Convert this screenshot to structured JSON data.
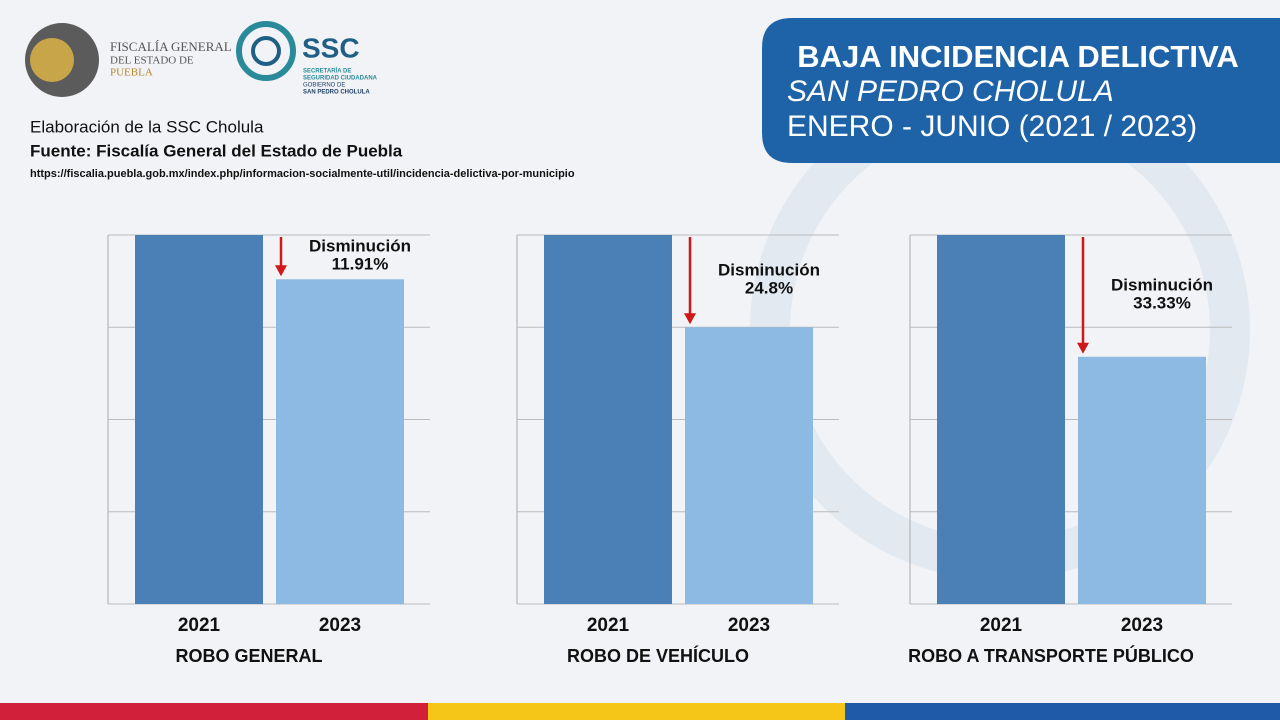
{
  "header": {
    "logo1": [
      "FISCALÍA GENERAL",
      "DEL ESTADO DE",
      "PUEBLA"
    ],
    "logo2": {
      "title": "SSC",
      "lines": [
        "SECRETARÍA DE",
        "SEGURIDAD CIUDADANA",
        "GOBIERNO DE",
        "SAN PEDRO CHOLULA"
      ]
    },
    "title": [
      "BAJA INCIDENCIA DELICTIVA",
      "SAN PEDRO CHOLULA",
      "ENERO - JUNIO (2021 / 2023)"
    ]
  },
  "source": [
    "Elaboración de la SSC Cholula",
    "Fuente: Fiscalía General del Estado de Puebla",
    "https://fiscalia.puebla.gob.mx/index.php/informacion-socialmente-util/incidencia-delictiva-por-municipio"
  ],
  "chart_data": [
    {
      "type": "bar",
      "xlabel": "ROBO GENERAL",
      "categories": [
        "2021",
        "2023"
      ],
      "values": [
        100,
        88
      ],
      "colors": [
        "#4a80b6",
        "#8dbae2"
      ],
      "ylim": [
        0,
        100
      ],
      "yticks": [
        0,
        25,
        50,
        75,
        100
      ],
      "grid": true,
      "annotation": [
        "Disminución",
        "11.91%"
      ]
    },
    {
      "type": "bar",
      "xlabel": "ROBO DE VEHÍCULO",
      "categories": [
        "2021",
        "2023"
      ],
      "values": [
        100,
        75
      ],
      "colors": [
        "#4a80b6",
        "#8dbae2"
      ],
      "ylim": [
        0,
        100
      ],
      "yticks": [
        0,
        25,
        50,
        75,
        100
      ],
      "grid": true,
      "annotation": [
        "Disminución",
        "24.8%"
      ]
    },
    {
      "type": "bar",
      "xlabel": "ROBO A TRANSPORTE PÚBLICO",
      "categories": [
        "2021",
        "2023"
      ],
      "values": [
        100,
        67
      ],
      "colors": [
        "#4a80b6",
        "#8dbae2"
      ],
      "ylim": [
        0,
        100
      ],
      "yticks": [
        0,
        25,
        50,
        75,
        100
      ],
      "grid": true,
      "annotation": [
        "Disminución",
        "33.33%"
      ]
    }
  ]
}
